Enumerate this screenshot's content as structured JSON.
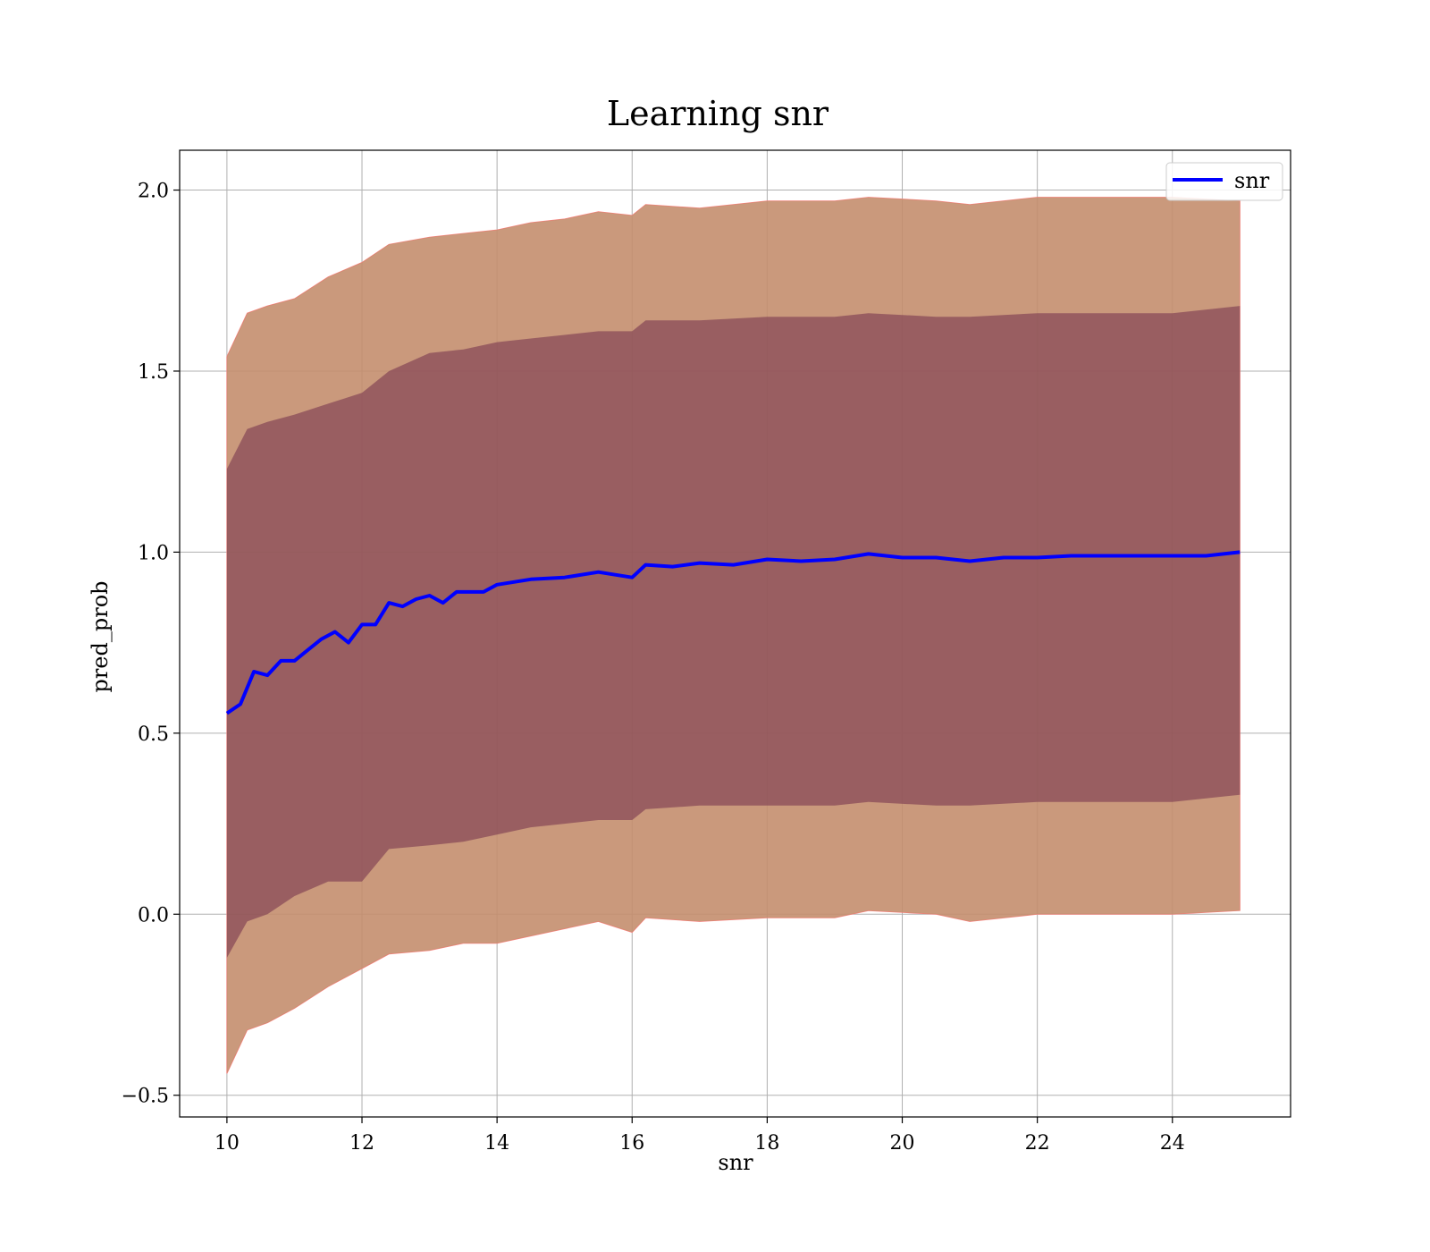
{
  "chart_data": {
    "type": "area",
    "title": "Learning snr",
    "xlabel": "snr",
    "ylabel": "pred_prob",
    "xlim": [
      9.3,
      25.75
    ],
    "ylim": [
      -0.56,
      2.11
    ],
    "grid": true,
    "legend_position": "top-right",
    "x_ticks": [
      10,
      12,
      14,
      16,
      18,
      20,
      22,
      24
    ],
    "y_ticks": [
      -0.5,
      0.0,
      0.5,
      1.0,
      1.5,
      2.0
    ],
    "x_tick_labels": [
      "10",
      "12",
      "14",
      "16",
      "18",
      "20",
      "22",
      "24"
    ],
    "y_tick_labels": [
      "−0.5",
      "0.0",
      "0.5",
      "1.0",
      "1.5",
      "2.0"
    ],
    "colors": {
      "line": "#0000ff",
      "outer_band": "#ff8080",
      "outer_band_overlay": "#b8906a",
      "inner_band": "#7b3a50"
    },
    "series": [
      {
        "name": "snr",
        "kind": "line",
        "x": [
          10.0,
          10.2,
          10.4,
          10.6,
          10.8,
          11.0,
          11.2,
          11.4,
          11.6,
          11.8,
          12.0,
          12.2,
          12.4,
          12.6,
          12.8,
          13.0,
          13.2,
          13.4,
          13.6,
          13.8,
          14.0,
          14.5,
          15.0,
          15.5,
          16.0,
          16.2,
          16.6,
          17.0,
          17.5,
          18.0,
          18.5,
          19.0,
          19.5,
          20.0,
          20.5,
          21.0,
          21.5,
          22.0,
          22.5,
          23.0,
          23.5,
          24.0,
          24.5,
          25.0
        ],
        "y": [
          0.555,
          0.58,
          0.67,
          0.66,
          0.7,
          0.7,
          0.73,
          0.76,
          0.78,
          0.75,
          0.8,
          0.8,
          0.86,
          0.85,
          0.87,
          0.88,
          0.86,
          0.89,
          0.89,
          0.89,
          0.91,
          0.925,
          0.93,
          0.945,
          0.93,
          0.965,
          0.96,
          0.97,
          0.965,
          0.98,
          0.975,
          0.98,
          0.995,
          0.985,
          0.985,
          0.975,
          0.985,
          0.985,
          0.99,
          0.99,
          0.99,
          0.99,
          0.99,
          1.0
        ]
      },
      {
        "kind": "band",
        "x": [
          10.0,
          10.3,
          10.6,
          11.0,
          11.5,
          12.0,
          12.4,
          13.0,
          13.5,
          14.0,
          14.5,
          15.0,
          15.5,
          16.0,
          16.2,
          17.0,
          18.0,
          19.0,
          19.5,
          20.5,
          21.0,
          22.0,
          23.0,
          24.0,
          25.0
        ],
        "lower": [
          -0.44,
          -0.32,
          -0.3,
          -0.26,
          -0.2,
          -0.15,
          -0.11,
          -0.1,
          -0.08,
          -0.08,
          -0.06,
          -0.04,
          -0.02,
          -0.05,
          -0.01,
          -0.02,
          -0.01,
          -0.01,
          0.01,
          0.0,
          -0.02,
          0.0,
          0.0,
          0.0,
          0.01
        ],
        "upper": [
          1.54,
          1.66,
          1.68,
          1.7,
          1.76,
          1.8,
          1.85,
          1.87,
          1.88,
          1.89,
          1.91,
          1.92,
          1.94,
          1.93,
          1.96,
          1.95,
          1.97,
          1.97,
          1.98,
          1.97,
          1.96,
          1.98,
          1.98,
          1.98,
          1.97
        ]
      },
      {
        "kind": "band",
        "x": [
          10.0,
          10.3,
          10.6,
          11.0,
          11.5,
          12.0,
          12.4,
          13.0,
          13.5,
          14.0,
          14.5,
          15.0,
          15.5,
          16.0,
          16.2,
          17.0,
          18.0,
          19.0,
          19.5,
          20.5,
          21.0,
          22.0,
          23.0,
          24.0,
          25.0
        ],
        "lower": [
          -0.12,
          -0.02,
          0.0,
          0.05,
          0.09,
          0.09,
          0.18,
          0.19,
          0.2,
          0.22,
          0.24,
          0.25,
          0.26,
          0.26,
          0.29,
          0.3,
          0.3,
          0.3,
          0.31,
          0.3,
          0.3,
          0.31,
          0.31,
          0.31,
          0.33
        ],
        "upper": [
          1.23,
          1.34,
          1.36,
          1.38,
          1.41,
          1.44,
          1.5,
          1.55,
          1.56,
          1.58,
          1.59,
          1.6,
          1.61,
          1.61,
          1.64,
          1.64,
          1.65,
          1.65,
          1.66,
          1.65,
          1.65,
          1.66,
          1.66,
          1.66,
          1.68
        ]
      }
    ]
  }
}
